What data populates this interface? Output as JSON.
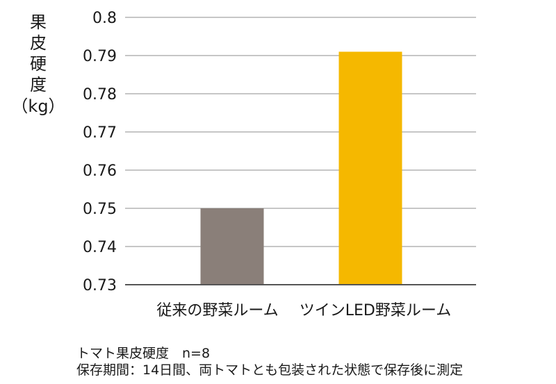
{
  "chart_data": {
    "type": "bar",
    "title": "",
    "xlabel": "",
    "ylabel": "果皮硬度（kg）",
    "ylabel_lines": [
      "果",
      "皮",
      "硬",
      "度",
      "（kg）"
    ],
    "categories": [
      "従来の野菜ルーム",
      "ツインLED野菜ルーム"
    ],
    "values": [
      0.75,
      0.791
    ],
    "colors": [
      "#8a7f79",
      "#f5b800"
    ],
    "ylim": [
      0.73,
      0.8
    ],
    "yticks": [
      0.73,
      0.74,
      0.75,
      0.76,
      0.77,
      0.78,
      0.79,
      0.8
    ],
    "ytick_labels": [
      "0.73",
      "0.74",
      "0.75",
      "0.76",
      "0.77",
      "0.78",
      "0.79",
      "0.8"
    ],
    "grid": true
  },
  "notes": {
    "line1": "トマト果皮硬度　n=8",
    "line2": "保存期間：14日間、両トマトとも包装された状態で保存後に測定"
  },
  "colors": {
    "grid": "#8c8c8c",
    "axis": "#555555",
    "text": "#1a1a1a"
  }
}
